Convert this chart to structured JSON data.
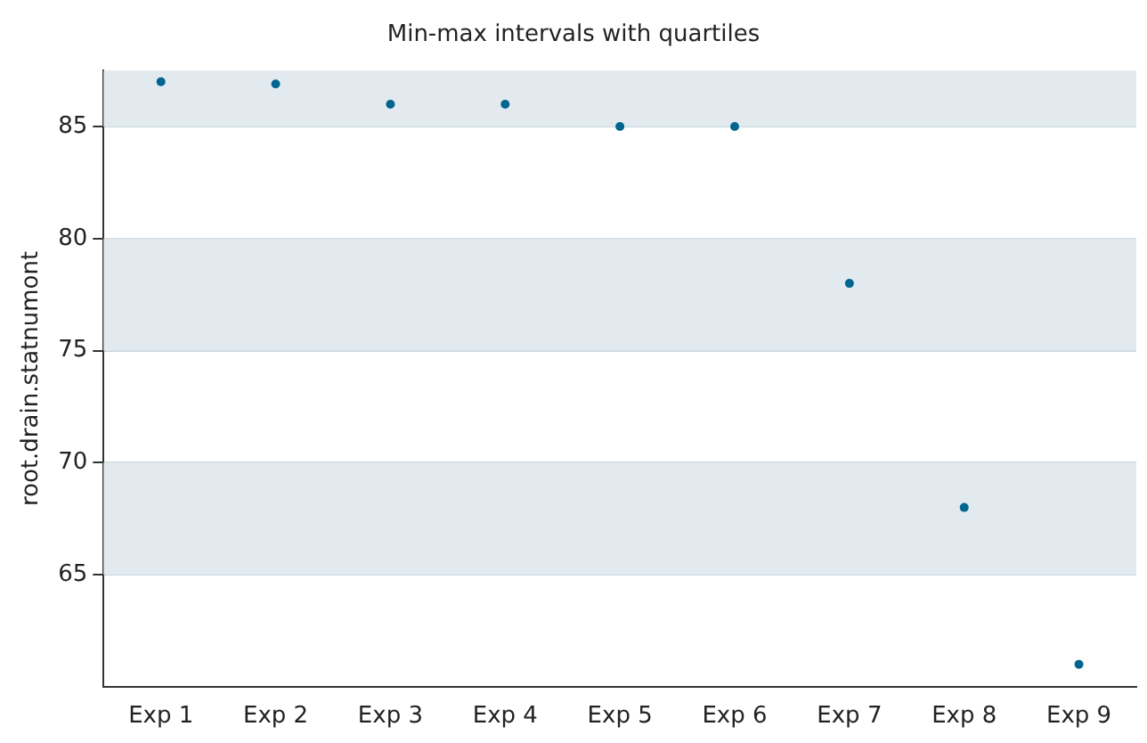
{
  "chart_data": {
    "type": "scatter",
    "title": "Min-max intervals with quartiles",
    "ylabel": "root.drain.statnumont",
    "categories": [
      "Exp 1",
      "Exp 2",
      "Exp 3",
      "Exp 4",
      "Exp 5",
      "Exp 6",
      "Exp 7",
      "Exp 8",
      "Exp 9"
    ],
    "series": [
      {
        "color": "#00668f",
        "values": [
          87,
          86.9,
          86,
          86,
          85,
          85,
          78,
          68,
          61
        ]
      }
    ],
    "ylim": [
      60,
      87.5
    ],
    "yticks": [
      65,
      70,
      75,
      80,
      85
    ],
    "grid": "y",
    "legend": false,
    "marker": "circle",
    "bands": [
      {
        "axis": "y",
        "from": 65,
        "to": 70,
        "color": "#e2eaef"
      },
      {
        "axis": "y",
        "from": 75,
        "to": 80,
        "color": "#e2eaef"
      },
      {
        "axis": "y",
        "from": 85,
        "to": 87.5,
        "color": "#e2eaef"
      }
    ]
  }
}
